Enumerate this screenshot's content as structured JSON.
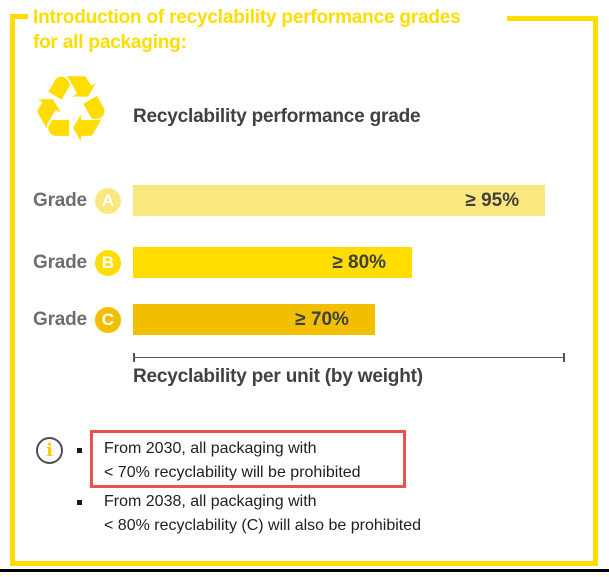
{
  "colors": {
    "brand_yellow": "#FFDD00",
    "pale_yellow": "#FAE87E",
    "amber": "#F1BE00",
    "heading_text": "#3F4142",
    "grade_label_gray": "#6D6E71",
    "body_text": "#1F1F1F",
    "highlight_red": "#E8514D",
    "axis_gray": "#55565A"
  },
  "header": {
    "title_line1": "Introduction of recyclability performance grades",
    "title_line2": "for all packaging:"
  },
  "icons": {
    "recycle_glyph": "♻",
    "info_glyph": "i"
  },
  "chart": {
    "heading": "Recyclability performance grade",
    "axis_label": "Recyclability per unit (by weight)",
    "grades": [
      {
        "label": "Grade",
        "letter": "A",
        "value": "≥ 95%",
        "color": "#FAE87E",
        "bar_width_pct": 95.4
      },
      {
        "label": "Grade",
        "letter": "B",
        "value": "≥ 80%",
        "color": "#FFDD00",
        "bar_width_pct": 64.6
      },
      {
        "label": "Grade",
        "letter": "C",
        "value": "≥ 70%",
        "color": "#F1BE00",
        "bar_width_pct": 56.0
      }
    ]
  },
  "notes": [
    {
      "line1": "From 2030, all packaging with",
      "line2": "< 70% recyclability will be prohibited",
      "highlighted": true
    },
    {
      "line1": "From 2038, all packaging with",
      "line2": "< 80% recyclability (C) will also be prohibited",
      "highlighted": false
    }
  ],
  "chart_data": {
    "type": "bar",
    "orientation": "horizontal",
    "title": "Recyclability performance grade",
    "xlabel": "Recyclability per unit (by weight)",
    "ylabel": "",
    "categories": [
      "Grade A",
      "Grade B",
      "Grade C"
    ],
    "values": [
      95,
      80,
      70
    ],
    "value_labels": [
      "≥ 95%",
      "≥ 80%",
      "≥ 70%"
    ],
    "bar_colors": [
      "#FAE87E",
      "#FFDD00",
      "#F1BE00"
    ],
    "legend": false,
    "grid": false,
    "annotations": [
      "From 2030, all packaging with < 70% recyclability will be prohibited",
      "From 2038, all packaging with < 80% recyclability (C) will also be prohibited"
    ]
  }
}
